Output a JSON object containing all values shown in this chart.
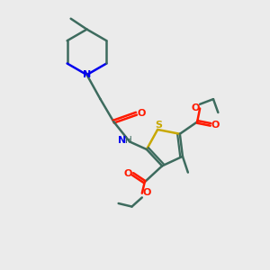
{
  "bg_color": "#ebebeb",
  "bond_color": "#3d6b5e",
  "N_color": "#0000ee",
  "S_color": "#c8a800",
  "O_color": "#ff1a00",
  "lw": 1.8,
  "figsize": [
    3.0,
    3.0
  ],
  "dpi": 100,
  "xlim": [
    0,
    10
  ],
  "ylim": [
    0,
    10
  ]
}
